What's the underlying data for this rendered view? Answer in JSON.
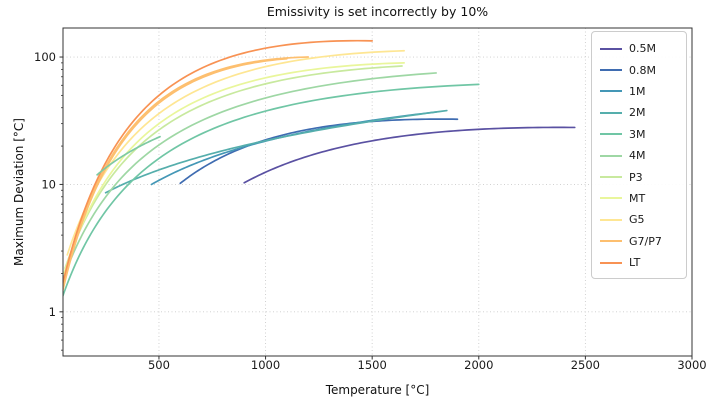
{
  "figure": {
    "title": "Emissivity is set incorrectly by 10%",
    "xlabel": "Temperature [°C]",
    "ylabel": "Maximum Deviation [°C]"
  },
  "chart_data": {
    "type": "line",
    "title": "Emissivity is set incorrectly by 10%",
    "xlabel": "Temperature [°C]",
    "ylabel": "Maximum Deviation [°C]",
    "xscale": "linear",
    "yscale": "log",
    "xlim": [
      50,
      3000
    ],
    "ylim": [
      0.45,
      169
    ],
    "x_ticks": [
      500,
      1000,
      1500,
      2000,
      2500,
      3000
    ],
    "y_ticks": [
      1,
      10,
      100
    ],
    "y_minor_ticks": [
      0.5,
      0.6,
      0.7,
      0.8,
      0.9,
      2,
      3,
      4,
      5,
      6,
      7,
      8,
      9,
      20,
      30,
      40,
      50,
      60,
      70,
      80,
      90
    ],
    "grid": "dotted",
    "grid_color": "#cccccc",
    "legend_position": "upper right",
    "series": [
      {
        "name": "0.5M",
        "color": "#5a51a2",
        "anchors": [
          [
            900,
            10.3
          ],
          [
            1500,
            22.0
          ],
          [
            2450,
            28.0
          ]
        ]
      },
      {
        "name": "0.8M",
        "color": "#3f6cb1",
        "anchors": [
          [
            600,
            10.2
          ],
          [
            1200,
            27.0
          ],
          [
            1900,
            32.5
          ]
        ]
      },
      {
        "name": "1M",
        "color": "#4497b6",
        "anchors": [
          [
            465,
            10.0
          ],
          [
            1100,
            24.0
          ],
          [
            1800,
            37.0
          ]
        ]
      },
      {
        "name": "2M",
        "color": "#55aeac",
        "anchors": [
          [
            250,
            8.6
          ],
          [
            500,
            13.0
          ],
          [
            1850,
            38.0
          ]
        ]
      },
      {
        "name": "3M",
        "color": "#70c6a5",
        "anchors": [
          [
            40,
            1.2
          ],
          [
            500,
            16.0
          ],
          [
            2000,
            61.0
          ]
        ]
      },
      {
        "name": "4M",
        "color": "#9ed7a4",
        "anchors": [
          [
            50,
            1.8
          ],
          [
            500,
            20.4
          ],
          [
            1800,
            75.0
          ]
        ]
      },
      {
        "name": "P3",
        "color": "#c8e99e",
        "anchors": [
          [
            60,
            2.2
          ],
          [
            500,
            26.8
          ],
          [
            1640,
            85.0
          ]
        ]
      },
      {
        "name": "MT",
        "color": "#e9f69b",
        "anchors": [
          [
            55,
            2.0
          ],
          [
            500,
            30.0
          ],
          [
            1650,
            90.0
          ]
        ]
      },
      {
        "name": "G5",
        "color": "#fee693",
        "anchors": [
          [
            70,
            2.8
          ],
          [
            500,
            36.0
          ],
          [
            1650,
            112.0
          ]
        ]
      },
      {
        "name": "G7/P7",
        "color": "#fdbf6f",
        "anchors": [
          [
            25,
            1.0
          ],
          [
            500,
            45.0
          ],
          [
            1200,
            100.0
          ]
        ]
      },
      {
        "name": "LT",
        "color": "#f89253",
        "anchors": [
          [
            25,
            1.1
          ],
          [
            500,
            50.0
          ],
          [
            1500,
            134.0
          ]
        ]
      }
    ],
    "extra_segments": [
      {
        "name": "G7/P7 companion trace",
        "color": "#fdbf6f",
        "anchors": [
          [
            30,
            1.05
          ],
          [
            500,
            43.5
          ],
          [
            1100,
            97.0
          ]
        ]
      },
      {
        "name": "short green trace",
        "color": "#7ecaa3",
        "anchors": [
          [
            210,
            11.9
          ],
          [
            350,
            17.5
          ],
          [
            505,
            23.7
          ]
        ]
      }
    ],
    "legend": {
      "items": [
        "0.5M",
        "0.8M",
        "1M",
        "2M",
        "3M",
        "4M",
        "P3",
        "MT",
        "G5",
        "G7/P7",
        "LT"
      ]
    }
  }
}
